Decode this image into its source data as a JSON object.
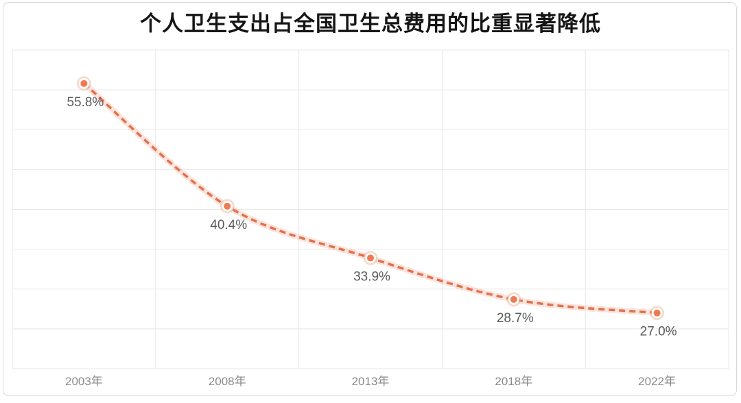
{
  "title": "个人卫生支出占全国卫生总费用的比重显著降低",
  "colors": {
    "line": "#e2704e",
    "line_glow": "rgba(236,132,96,0.22)",
    "marker_fill": "#ee7b53",
    "marker_ring": "#ffffff",
    "marker_halo": "rgba(240,170,140,0.45)",
    "grid": "#e7e7e7",
    "plot_border": "#e3e3e3",
    "data_label": "#595959",
    "tick_label": "#8a8a8a",
    "card_border": "#d8d8d8",
    "title_color": "#151515",
    "background": "#ffffff"
  },
  "chart_data": {
    "type": "line",
    "line_style": "dashed-smooth",
    "title": "个人卫生支出占全国卫生总费用的比重显著降低",
    "categories": [
      "2003年",
      "2008年",
      "2013年",
      "2018年",
      "2022年"
    ],
    "values": [
      55.8,
      40.4,
      33.9,
      28.7,
      27.0
    ],
    "data_labels": [
      "55.8%",
      "40.4%",
      "33.9%",
      "28.7%",
      "27.0%"
    ],
    "xlabel": "",
    "ylabel": "",
    "ylim": [
      20,
      60
    ],
    "y_gridline_step": 5,
    "y_axis_labels_visible": false,
    "grid": true,
    "legend_position": "none"
  }
}
